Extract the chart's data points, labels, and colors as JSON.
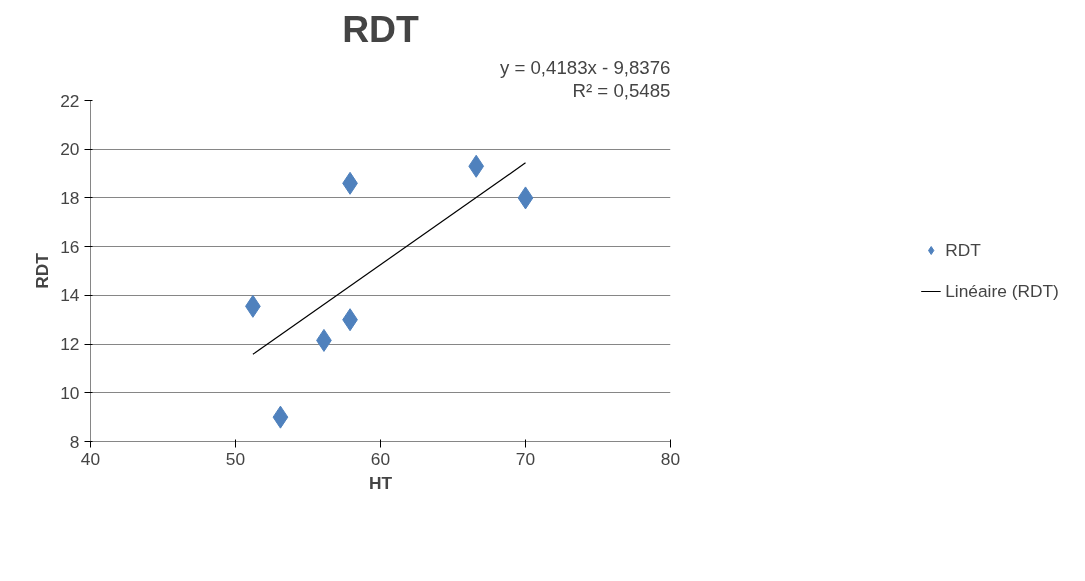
{
  "chart_data": {
    "type": "scatter",
    "title": "RDT",
    "xlabel": "HT",
    "ylabel": "RDT",
    "xlim": [
      40,
      80
    ],
    "xticks": [
      40,
      50,
      60,
      70,
      80
    ],
    "ylim": [
      8,
      22
    ],
    "yticks": [
      8,
      10,
      12,
      14,
      16,
      18,
      20,
      22
    ],
    "grid": "y",
    "legend": "right",
    "marker": "diamond",
    "annotations": [
      "y = 0,4183x - 9,8376",
      "R² = 0,5485"
    ],
    "series": [
      {
        "name": "RDT",
        "color": "#4f81bd",
        "x": [
          51.2,
          53.1,
          56.1,
          57.9,
          57.9,
          66.6,
          70.0
        ],
        "values": [
          13.55,
          9.0,
          12.15,
          13.0,
          18.6,
          19.3,
          18.0
        ]
      },
      {
        "name": "Linéaire (RDT)",
        "type": "line",
        "color": "#000000",
        "marker": "none",
        "x": [
          51.2,
          70.0
        ],
        "values": [
          11.58,
          19.44
        ]
      }
    ]
  }
}
